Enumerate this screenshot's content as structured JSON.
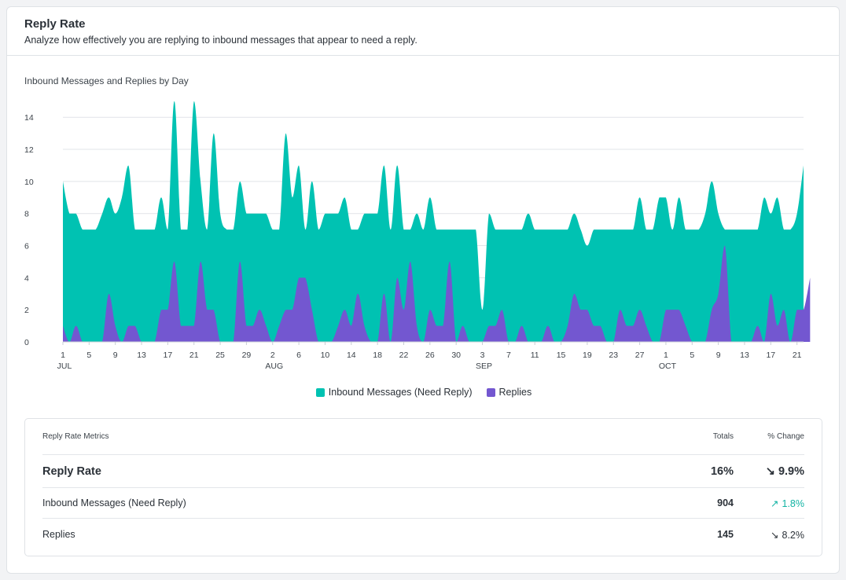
{
  "card": {
    "title": "Reply Rate",
    "subtitle": "Analyze how effectively you are replying to inbound messages that appear to need a reply."
  },
  "chart_data": {
    "type": "area",
    "title": "Inbound Messages and Replies by Day",
    "ylim": [
      0,
      15
    ],
    "y_ticks": [
      0,
      2,
      4,
      6,
      8,
      10,
      12,
      14
    ],
    "grid": true,
    "legend_position": "bottom",
    "x_ticks": [
      {
        "day": 0,
        "label": "1",
        "month": "JUL"
      },
      {
        "day": 4,
        "label": "5"
      },
      {
        "day": 8,
        "label": "9"
      },
      {
        "day": 12,
        "label": "13"
      },
      {
        "day": 16,
        "label": "17"
      },
      {
        "day": 20,
        "label": "21"
      },
      {
        "day": 24,
        "label": "25"
      },
      {
        "day": 28,
        "label": "29"
      },
      {
        "day": 32,
        "label": "2",
        "month": "AUG"
      },
      {
        "day": 36,
        "label": "6"
      },
      {
        "day": 40,
        "label": "10"
      },
      {
        "day": 44,
        "label": "14"
      },
      {
        "day": 48,
        "label": "18"
      },
      {
        "day": 52,
        "label": "22"
      },
      {
        "day": 56,
        "label": "26"
      },
      {
        "day": 60,
        "label": "30"
      },
      {
        "day": 64,
        "label": "3",
        "month": "SEP"
      },
      {
        "day": 68,
        "label": "7"
      },
      {
        "day": 72,
        "label": "11"
      },
      {
        "day": 76,
        "label": "15"
      },
      {
        "day": 80,
        "label": "19"
      },
      {
        "day": 84,
        "label": "23"
      },
      {
        "day": 88,
        "label": "27"
      },
      {
        "day": 92,
        "label": "1",
        "month": "OCT"
      },
      {
        "day": 96,
        "label": "5"
      },
      {
        "day": 100,
        "label": "9"
      },
      {
        "day": 104,
        "label": "13"
      },
      {
        "day": 108,
        "label": "17"
      },
      {
        "day": 112,
        "label": "21"
      }
    ],
    "series": [
      {
        "name": "Inbound Messages (Need Reply)",
        "color": "#00c2b2",
        "values": [
          10,
          8,
          8,
          7,
          7,
          7,
          8,
          9,
          8,
          9,
          11,
          7,
          7,
          7,
          7,
          9,
          7,
          15,
          7,
          7,
          15,
          10,
          7,
          13,
          8,
          7,
          7,
          10,
          8,
          8,
          8,
          8,
          7,
          7,
          13,
          9,
          11,
          7,
          10,
          7,
          8,
          8,
          8,
          9,
          7,
          7,
          8,
          8,
          8,
          11,
          7,
          11,
          7,
          7,
          8,
          7,
          9,
          7,
          7,
          7,
          7,
          7,
          7,
          7,
          2,
          8,
          7,
          7,
          7,
          7,
          7,
          8,
          7,
          7,
          7,
          7,
          7,
          7,
          8,
          7,
          6,
          7,
          7,
          7,
          7,
          7,
          7,
          7,
          9,
          7,
          7,
          9,
          9,
          7,
          9,
          7,
          7,
          7,
          8,
          10,
          8,
          7,
          7,
          7,
          7,
          7,
          7,
          9,
          8,
          9,
          7,
          7,
          8,
          11
        ]
      },
      {
        "name": "Replies",
        "color": "#7357d0",
        "values": [
          1,
          0,
          1,
          0,
          0,
          0,
          0,
          3,
          1,
          0,
          1,
          1,
          0,
          0,
          0,
          2,
          2,
          5,
          1,
          1,
          1,
          5,
          2,
          2,
          0,
          0,
          0,
          5,
          1,
          1,
          2,
          1,
          0,
          1,
          2,
          2,
          4,
          4,
          2,
          0,
          0,
          0,
          1,
          2,
          1,
          3,
          1,
          0,
          0,
          3,
          0,
          4,
          2,
          5,
          1,
          0,
          2,
          1,
          1,
          5,
          0,
          1,
          0,
          0,
          0,
          1,
          1,
          2,
          0,
          0,
          1,
          0,
          0,
          0,
          1,
          0,
          0,
          1,
          3,
          2,
          2,
          1,
          1,
          0,
          0,
          2,
          1,
          1,
          2,
          1,
          0,
          0,
          2,
          2,
          2,
          1,
          0,
          0,
          0,
          2,
          3,
          6,
          0,
          0,
          0,
          0,
          1,
          0,
          3,
          1,
          2,
          0,
          2,
          2,
          4
        ]
      }
    ]
  },
  "legend": {
    "inbound_label": "Inbound Messages (Need Reply)",
    "replies_label": "Replies"
  },
  "metrics": {
    "header": {
      "label": "Reply Rate Metrics",
      "totals": "Totals",
      "change": "% Change"
    },
    "rows": [
      {
        "label": "Reply Rate",
        "total": "16%",
        "arrow": "↘",
        "change": "9.9%",
        "direction": "down"
      },
      {
        "label": "Inbound Messages (Need Reply)",
        "total": "904",
        "arrow": "↗",
        "change": "1.8%",
        "direction": "up"
      },
      {
        "label": "Replies",
        "total": "145",
        "arrow": "↘",
        "change": "8.2%",
        "direction": "down"
      }
    ]
  }
}
